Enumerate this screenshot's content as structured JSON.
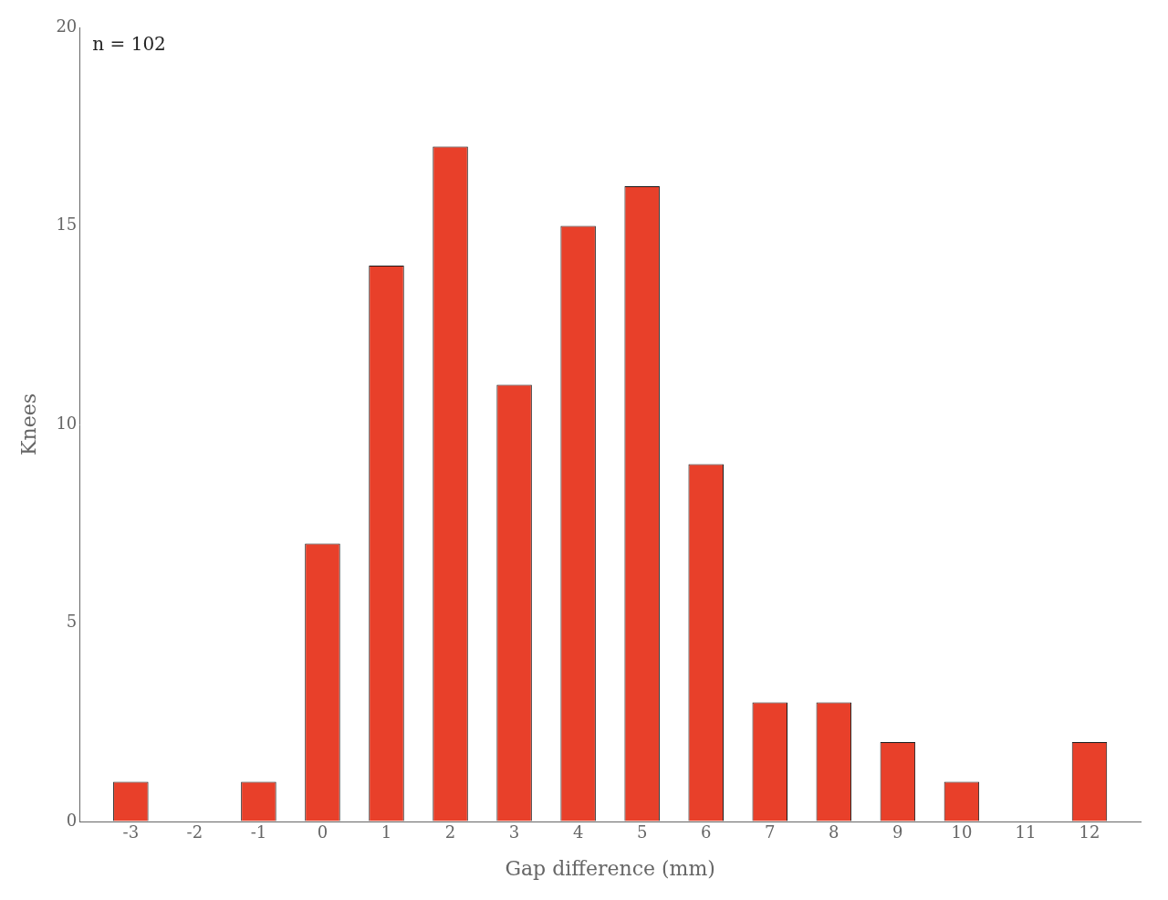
{
  "chart_data": {
    "type": "bar",
    "x": [
      -3,
      -2,
      -1,
      0,
      1,
      2,
      3,
      4,
      5,
      6,
      7,
      8,
      9,
      10,
      11,
      12
    ],
    "values": [
      1,
      0,
      1,
      7,
      14,
      17,
      11,
      15,
      16,
      9,
      3,
      3,
      2,
      1,
      0,
      2
    ],
    "color": "#E8402A",
    "xlabel": "Gap difference (mm)",
    "ylabel": "Knees",
    "annotation": "n = 102",
    "xlim": [
      -3.8,
      12.8
    ],
    "xticks": [
      -3,
      -2,
      -1,
      0,
      1,
      2,
      3,
      4,
      5,
      6,
      7,
      8,
      9,
      10,
      11,
      12
    ],
    "ylim": [
      0,
      20
    ],
    "yticks": [
      0,
      5,
      10,
      15,
      20
    ],
    "grid": false
  }
}
